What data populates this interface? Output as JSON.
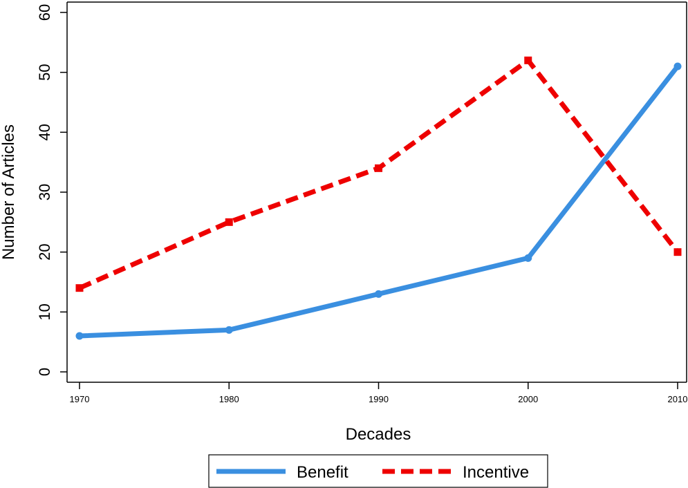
{
  "chart_data": {
    "type": "line",
    "xlabel": "Decades",
    "ylabel": "Number of Articles",
    "x": [
      1970,
      1980,
      1990,
      2000,
      2010
    ],
    "x_tick_labels": [
      "1970",
      "1980",
      "1990",
      "2000",
      "2010"
    ],
    "xlim": [
      1970,
      2010
    ],
    "ylim": [
      0,
      60
    ],
    "y_ticks": [
      0,
      10,
      20,
      30,
      40,
      50,
      60
    ],
    "y_tick_labels": [
      "0",
      "10",
      "20",
      "30",
      "40",
      "50",
      "60"
    ],
    "grid": false,
    "legend_position": "bottom",
    "series": [
      {
        "name": "Benefit",
        "values": [
          6,
          7,
          13,
          19,
          51
        ],
        "color": "#3a8fe0",
        "style": "solid",
        "marker": "circle"
      },
      {
        "name": "Incentive",
        "values": [
          14,
          25,
          34,
          52,
          20
        ],
        "color": "#ee0000",
        "style": "dashed",
        "marker": "square"
      }
    ]
  }
}
